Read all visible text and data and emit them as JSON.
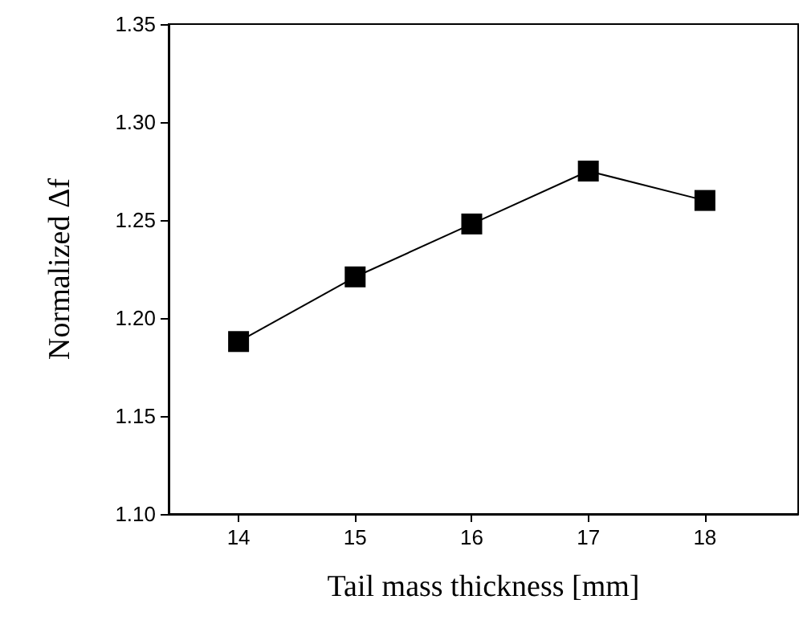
{
  "chart_data": {
    "type": "line",
    "xlabel": "Tail mass thickness [mm]",
    "ylabel": "Normalized Δf",
    "x": [
      14,
      15,
      16,
      17,
      18
    ],
    "series": [
      {
        "color": "#000000",
        "values": [
          1.188,
          1.221,
          1.248,
          1.275,
          1.26
        ]
      }
    ],
    "xlim": [
      13.4,
      18.8
    ],
    "xticks": [
      14,
      15,
      16,
      17,
      18
    ],
    "ylim": [
      1.1,
      1.35
    ],
    "yticks": [
      {
        "value": 1.1,
        "label": "1.10"
      },
      1.15,
      {
        "value": 1.2,
        "label": "1.20"
      },
      1.25,
      {
        "value": 1.3,
        "label": "1.30"
      },
      1.35
    ],
    "marker": "square",
    "line_style": "solid",
    "grid": false
  }
}
